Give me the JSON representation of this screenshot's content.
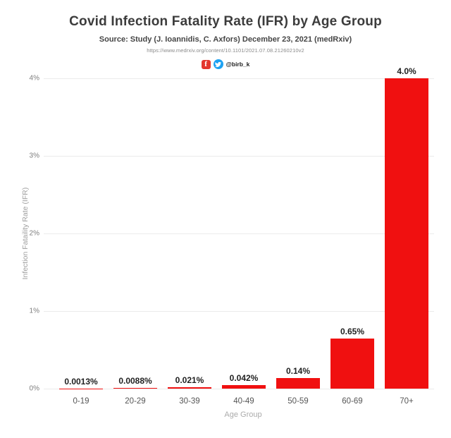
{
  "header": {
    "title": "Covid Infection Fatality Rate (IFR) by Age Group",
    "subtitle": "Source: Study (J. Ioannidis, C. Axfors) December 23, 2021 (medRxiv)",
    "link": "https://www.medrxiv.org/content/10.1101/2021.07.08.21260210v2",
    "social_handle": "@birb_k",
    "icons": {
      "facebook": "facebook-icon",
      "twitter": "twitter-icon"
    }
  },
  "chart_data": {
    "type": "bar",
    "title": "Covid Infection Fatality Rate (IFR) by Age Group",
    "categories": [
      "0-19",
      "20-29",
      "30-39",
      "40-49",
      "50-59",
      "60-69",
      "70+"
    ],
    "values": [
      0.0013,
      0.0088,
      0.021,
      0.042,
      0.14,
      0.65,
      4.0
    ],
    "value_labels": [
      "0.0013%",
      "0.0088%",
      "0.021%",
      "0.042%",
      "0.14%",
      "0.65%",
      "4.0%"
    ],
    "xlabel": "Age Group",
    "ylabel": "Infection Fataility Rate (IFR)",
    "ylim": [
      0,
      4
    ],
    "ytick_values": [
      0,
      1,
      2,
      3,
      4
    ],
    "ytick_labels": [
      "0%",
      "1%",
      "2%",
      "3%",
      "4%"
    ],
    "bar_color": "#f01010",
    "grid": true,
    "legend_position": "none"
  }
}
